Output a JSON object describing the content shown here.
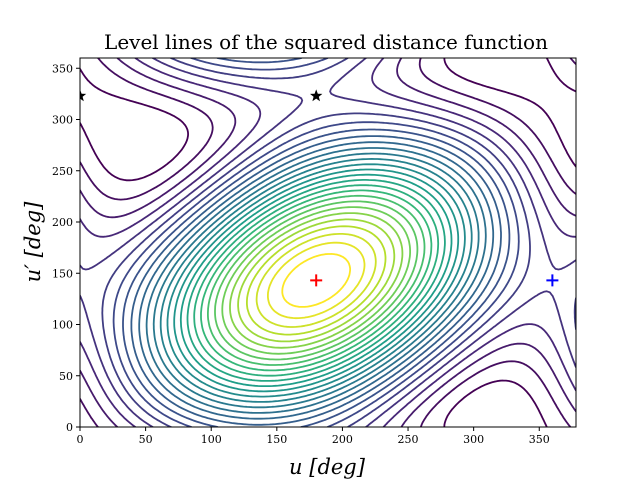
{
  "chart_data": {
    "type": "contour",
    "title": "Level lines of the squared distance function",
    "xlabel": "u [deg]",
    "ylabel": "u′ [deg]",
    "xlim": [
      0,
      378
    ],
    "ylim": [
      0,
      360
    ],
    "xticks": [
      0,
      50,
      100,
      150,
      200,
      250,
      300,
      350
    ],
    "yticks": [
      0,
      50,
      100,
      150,
      200,
      250,
      300,
      350
    ],
    "grid": false,
    "colormap": "viridis",
    "levels": 28,
    "markers": [
      {
        "symbol": "+",
        "color": "#ff0000",
        "x": 180,
        "y": 143
      },
      {
        "symbol": "+",
        "color": "#0000ff",
        "x": 360,
        "y": 143
      },
      {
        "symbol": "star",
        "color": "#000000",
        "x": 0,
        "y": 323
      },
      {
        "symbol": "star",
        "color": "#000000",
        "x": 180,
        "y": 323
      }
    ]
  }
}
